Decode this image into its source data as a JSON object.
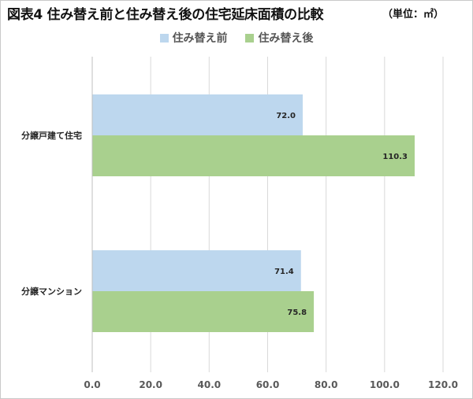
{
  "title": "図表4 住み替え前と住み替え後の住宅延床面積の比較",
  "unit_label": "（単位：㎡）",
  "chart_data": {
    "type": "bar",
    "orientation": "horizontal",
    "title": "図表4 住み替え前と住み替え後の住宅延床面積の比較",
    "xlabel": "",
    "ylabel": "",
    "categories": [
      "分譲戸建て住宅",
      "分譲マンション"
    ],
    "series": [
      {
        "name": "住み替え前",
        "color": "#bdd7ee",
        "values": [
          72.0,
          71.4
        ]
      },
      {
        "name": "住み替え後",
        "color": "#a9d08e",
        "values": [
          110.3,
          75.8
        ]
      }
    ],
    "xlim": [
      0,
      120
    ],
    "ticks": [
      0,
      20,
      40,
      60,
      80,
      100,
      120
    ],
    "tick_labels": [
      "0.0",
      "20.0",
      "40.0",
      "60.0",
      "80.0",
      "100.0",
      "120.0"
    ],
    "data_labels": [
      [
        "72.0",
        "71.4"
      ],
      [
        "110.3",
        "75.8"
      ]
    ],
    "gridlines": true,
    "legend_position": "top"
  }
}
